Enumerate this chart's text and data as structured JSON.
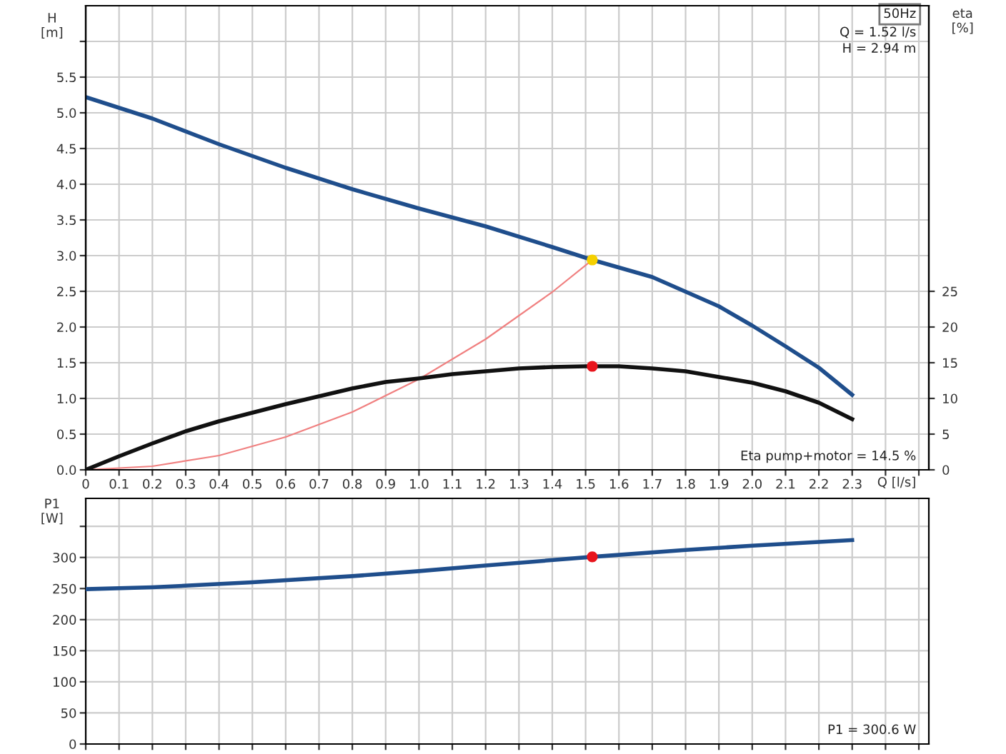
{
  "chart_data": [
    {
      "type": "line",
      "xlabel": "Q [l/s]",
      "ylabel": "H\n[m]",
      "y2label": "eta\n[%]",
      "annotations": [
        "50Hz",
        "Q = 1.52 l/s",
        "H = 2.94 m",
        "Eta pump+motor = 14.5 %"
      ],
      "xlim": [
        0,
        2.53
      ],
      "xticks": [
        0,
        0.1,
        0.2,
        0.3,
        0.4,
        0.5,
        0.6,
        0.7,
        0.8,
        0.9,
        {
          "value": 1,
          "label": "1.0"
        },
        1.1,
        1.2,
        1.3,
        1.4,
        1.5,
        1.6,
        1.7,
        1.8,
        1.9,
        {
          "value": 2,
          "label": "2.0"
        },
        2.1,
        2.2,
        2.3,
        {
          "value": 2.4,
          "label": null
        },
        {
          "value": 2.5,
          "label": null
        }
      ],
      "ylim": [
        0,
        6.5
      ],
      "yticks": [
        {
          "value": 0,
          "label": "0.0"
        },
        0.5,
        {
          "value": 1,
          "label": "1.0"
        },
        1.5,
        {
          "value": 2,
          "label": "2.0"
        },
        2.5,
        {
          "value": 3,
          "label": "3.0"
        },
        3.5,
        {
          "value": 4,
          "label": "4.0"
        },
        4.5,
        {
          "value": 5,
          "label": "5.0"
        },
        5.5,
        {
          "value": 6.0,
          "label": null
        }
      ],
      "y2lim": [
        0,
        65
      ],
      "y2ticks": [
        0,
        5,
        10,
        15,
        20,
        25
      ],
      "grid": true,
      "legend": false,
      "series": [
        {
          "color": "#1f4e8c",
          "marker": "none",
          "x": [
            0,
            0.2,
            0.4,
            0.6,
            0.8,
            1.0,
            1.2,
            1.4,
            1.52,
            1.7,
            1.9,
            2.0,
            2.1,
            2.2,
            2.3
          ],
          "values": [
            5.22,
            4.92,
            4.56,
            4.23,
            3.93,
            3.66,
            3.41,
            3.12,
            2.94,
            2.7,
            2.29,
            2.02,
            1.73,
            1.43,
            1.05
          ]
        },
        {
          "color": "#f08080",
          "marker": "none",
          "x": [
            0,
            0.2,
            0.4,
            0.6,
            0.8,
            1.0,
            1.2,
            1.4,
            1.52
          ],
          "values": [
            0,
            0.05,
            0.2,
            0.46,
            0.81,
            1.27,
            1.83,
            2.49,
            2.94
          ]
        },
        {
          "axis": "y2",
          "color": "#111111",
          "marker": "none",
          "x": [
            0,
            0.1,
            0.2,
            0.3,
            0.4,
            0.5,
            0.6,
            0.7,
            0.8,
            0.9,
            1.0,
            1.1,
            1.2,
            1.3,
            1.4,
            1.5,
            1.6,
            1.7,
            1.8,
            1.9,
            2.0,
            2.1,
            2.2,
            2.3
          ],
          "values": [
            0,
            1.9,
            3.7,
            5.4,
            6.8,
            8.0,
            9.2,
            10.3,
            11.4,
            12.3,
            12.8,
            13.4,
            13.8,
            14.2,
            14.4,
            14.5,
            14.5,
            14.2,
            13.8,
            13.0,
            12.2,
            11.0,
            9.4,
            7.1
          ]
        },
        {
          "type": "scatter",
          "color": "#f5d000",
          "marker": "circle",
          "x": [
            1.52
          ],
          "values": [
            2.94
          ]
        },
        {
          "type": "scatter",
          "axis": "y2",
          "color": "#e8141c",
          "marker": "circle",
          "x": [
            1.52
          ],
          "values": [
            14.5
          ]
        }
      ]
    },
    {
      "type": "line",
      "ylabel": "P1\n[W]",
      "annotations": [
        "P1 = 300.6 W"
      ],
      "xlim": [
        0,
        2.53
      ],
      "xticks": [
        0,
        0.1,
        0.2,
        0.3,
        0.4,
        0.5,
        0.6,
        0.7,
        0.8,
        0.9,
        1.0,
        1.1,
        1.2,
        1.3,
        1.4,
        1.5,
        1.6,
        1.7,
        1.8,
        1.9,
        2.0,
        2.1,
        2.2,
        2.3,
        2.4,
        2.5
      ],
      "ylim": [
        0,
        395
      ],
      "yticks": [
        0,
        50,
        100,
        150,
        200,
        250,
        300,
        {
          "value": 350,
          "label": null
        }
      ],
      "grid": true,
      "legend": false,
      "tick_labels": "y",
      "series": [
        {
          "color": "#1f4e8c",
          "marker": "none",
          "x": [
            0,
            0.2,
            0.5,
            0.8,
            1.0,
            1.2,
            1.52,
            1.8,
            2.0,
            2.3
          ],
          "values": [
            249,
            252,
            260,
            270,
            278,
            287,
            301,
            312,
            319,
            328
          ]
        },
        {
          "type": "scatter",
          "color": "#e8141c",
          "marker": "circle",
          "x": [
            1.52
          ],
          "values": [
            301
          ]
        }
      ]
    }
  ]
}
